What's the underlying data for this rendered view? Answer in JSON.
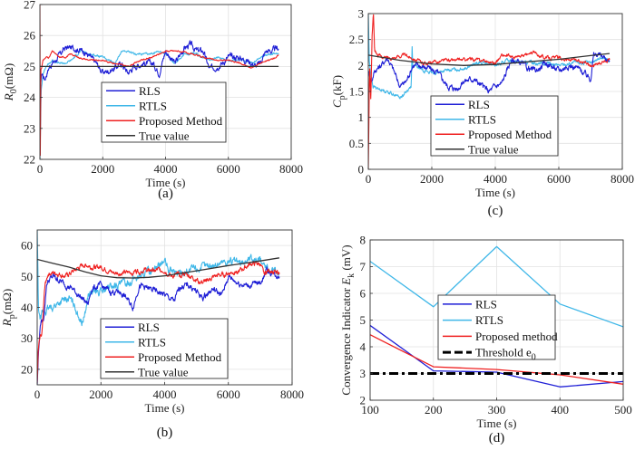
{
  "chart_data": [
    {
      "id": "a",
      "type": "line",
      "caption": "(a)",
      "xlabel": "Time (s)",
      "ylabel_main": "R",
      "ylabel_sub": "0",
      "ylabel_unit": "(mΩ)",
      "xlim": [
        0,
        8000
      ],
      "ylim": [
        22,
        27
      ],
      "xticks": [
        0,
        2000,
        4000,
        6000,
        8000
      ],
      "yticks": [
        22,
        23,
        24,
        25,
        26,
        27
      ],
      "grid": true,
      "legend_position": "center",
      "series": [
        {
          "name": "RLS",
          "color": "#1f1fd6",
          "noise": 0.12,
          "x": [
            0,
            60,
            150,
            300,
            500,
            800,
            1100,
            1400,
            1600,
            1800,
            2000,
            2300,
            2600,
            2800,
            3000,
            3300,
            3600,
            3800,
            4000,
            4300,
            4600,
            4800,
            5000,
            5200,
            5400,
            5600,
            5800,
            6000,
            6300,
            6600,
            6900,
            7000,
            7200,
            7400,
            7600
          ],
          "y": [
            24.2,
            24.8,
            24.6,
            25.0,
            25.2,
            25.6,
            25.6,
            25.5,
            25.3,
            25.1,
            24.8,
            24.9,
            25.1,
            24.8,
            25.0,
            25.1,
            25.1,
            24.8,
            25.5,
            25.1,
            25.6,
            25.7,
            25.5,
            25.5,
            24.9,
            25.0,
            25.1,
            25.3,
            25.3,
            25.2,
            25.0,
            25.1,
            25.5,
            25.5,
            25.6
          ]
        },
        {
          "name": "RTLS",
          "color": "#3fb7e8",
          "noise": 0.04,
          "x": [
            0,
            40,
            100,
            200,
            400,
            600,
            800,
            1000,
            1300,
            1600,
            2000,
            2400,
            2600,
            2700,
            3000,
            3300,
            3500,
            3800,
            4000,
            4300,
            4600,
            5000,
            5400,
            5700,
            6000,
            6400,
            6800,
            7000,
            7300,
            7600
          ],
          "y": [
            22.0,
            24.2,
            24.8,
            25.0,
            25.2,
            25.1,
            25.1,
            25.2,
            25.5,
            25.4,
            25.3,
            25.1,
            25.5,
            25.5,
            25.4,
            25.4,
            25.4,
            25.5,
            25.4,
            25.1,
            25.4,
            25.4,
            25.2,
            25.3,
            25.2,
            25.2,
            25.1,
            25.3,
            25.4,
            25.4
          ]
        },
        {
          "name": "Proposed Method",
          "color": "#ef2020",
          "noise": 0.03,
          "x": [
            0,
            10,
            30,
            60,
            100,
            200,
            300,
            400,
            500,
            600,
            800,
            1000,
            1200,
            1600,
            2000,
            2400,
            2800,
            3200,
            3600,
            4000,
            4400,
            4800,
            5200,
            5600,
            6000,
            6400,
            6700,
            7000,
            7300,
            7600
          ],
          "y": [
            27.0,
            22.0,
            24.9,
            25.0,
            25.2,
            25.3,
            25.3,
            25.5,
            25.4,
            25.3,
            25.3,
            25.4,
            25.3,
            25.2,
            25.2,
            25.1,
            25.0,
            25.2,
            25.3,
            25.5,
            25.5,
            25.4,
            25.3,
            25.2,
            25.2,
            25.1,
            24.95,
            25.1,
            25.2,
            25.35
          ]
        },
        {
          "name": "True value",
          "color": "#333333",
          "noise": 0,
          "x": [
            0,
            7600
          ],
          "y": [
            25.0,
            25.0
          ]
        }
      ]
    },
    {
      "id": "c",
      "type": "line",
      "caption": "(c)",
      "xlabel": "Time (s)",
      "ylabel_main": "C",
      "ylabel_sub": "p",
      "ylabel_unit": "(kF)",
      "xlim": [
        0,
        8000
      ],
      "ylim": [
        0,
        3
      ],
      "xticks": [
        0,
        2000,
        4000,
        6000,
        8000
      ],
      "yticks": [
        0,
        0.5,
        1,
        1.5,
        2,
        2.5,
        3
      ],
      "grid": true,
      "legend_position": "center",
      "series": [
        {
          "name": "RLS",
          "color": "#1f1fd6",
          "noise": 0.07,
          "x": [
            0,
            100,
            200,
            400,
            600,
            800,
            1000,
            1200,
            1400,
            1600,
            1900,
            2200,
            2500,
            2800,
            3000,
            3300,
            3600,
            3800,
            4000,
            4200,
            4500,
            4800,
            5000,
            5300,
            5600,
            6000,
            6300,
            6600,
            6900,
            7000,
            7100,
            7300,
            7600
          ],
          "y": [
            1.9,
            1.7,
            1.9,
            2.0,
            2.15,
            1.9,
            1.6,
            1.7,
            2.0,
            2.0,
            1.95,
            1.85,
            1.6,
            1.55,
            1.7,
            1.75,
            1.6,
            1.5,
            1.6,
            1.65,
            2.1,
            2.05,
            1.95,
            1.9,
            2.05,
            1.9,
            2.0,
            1.95,
            1.8,
            1.75,
            2.2,
            2.2,
            2.1
          ]
        },
        {
          "name": "RTLS",
          "color": "#3fb7e8",
          "noise": 0.04,
          "x": [
            0,
            30,
            60,
            150,
            300,
            600,
            900,
            1000,
            1200,
            1350,
            1380,
            1400,
            1600,
            2000,
            2500,
            3000,
            3500,
            4000,
            4400,
            5000,
            5500,
            6000,
            6500,
            7000,
            7300,
            7600
          ],
          "y": [
            3.0,
            2.1,
            1.9,
            1.6,
            1.55,
            1.5,
            1.42,
            1.38,
            1.5,
            1.6,
            2.4,
            2.0,
            1.95,
            1.85,
            1.9,
            1.95,
            2.05,
            2.0,
            2.1,
            2.05,
            2.05,
            2.0,
            2.05,
            2.05,
            2.15,
            2.1
          ]
        },
        {
          "name": "Proposed Method",
          "color": "#ef2020",
          "noise": 0.04,
          "x": [
            0,
            40,
            80,
            120,
            160,
            200,
            300,
            500,
            800,
            1100,
            1400,
            1700,
            2000,
            2400,
            2800,
            3200,
            3600,
            4000,
            4200,
            4600,
            5000,
            5200,
            5600,
            6000,
            6400,
            6800,
            7000,
            7300,
            7600
          ],
          "y": [
            0.0,
            2.0,
            1.3,
            2.6,
            3.0,
            2.3,
            2.2,
            2.15,
            2.15,
            2.2,
            2.15,
            2.05,
            2.05,
            2.1,
            2.1,
            2.12,
            2.1,
            2.05,
            2.2,
            2.15,
            2.2,
            2.25,
            2.15,
            2.15,
            2.1,
            2.08,
            2.0,
            2.05,
            2.12
          ]
        },
        {
          "name": "True value",
          "color": "#333333",
          "noise": 0,
          "x": [
            0,
            1000,
            2000,
            3000,
            4000,
            5000,
            6000,
            7000,
            7600
          ],
          "y": [
            2.2,
            2.1,
            2.03,
            2.0,
            2.02,
            2.07,
            2.12,
            2.19,
            2.23
          ]
        }
      ]
    },
    {
      "id": "b",
      "type": "line",
      "caption": "(b)",
      "xlabel": "Time (s)",
      "ylabel_main": "R",
      "ylabel_sub": "p",
      "ylabel_unit": "(mΩ)",
      "xlim": [
        0,
        8000
      ],
      "ylim": [
        15,
        65
      ],
      "xticks": [
        0,
        2000,
        4000,
        6000,
        8000
      ],
      "yticks": [
        20,
        30,
        40,
        50,
        60
      ],
      "grid": true,
      "legend_position": "bottom-center",
      "series": [
        {
          "name": "RLS",
          "color": "#1f1fd6",
          "noise": 1.2,
          "x": [
            0,
            50,
            100,
            200,
            300,
            500,
            800,
            1100,
            1400,
            1600,
            1700,
            2000,
            2300,
            2600,
            2800,
            3000,
            3200,
            3500,
            3800,
            4000,
            4300,
            4500,
            4800,
            5200,
            5500,
            5800,
            6000,
            6300,
            6600,
            7000,
            7200,
            7400,
            7600
          ],
          "y": [
            15,
            27,
            35,
            36,
            48,
            50,
            48,
            46,
            43,
            41,
            46,
            47,
            45,
            45,
            43,
            40,
            47,
            46,
            45,
            44,
            42,
            47,
            47,
            43,
            46,
            44,
            50,
            48,
            47,
            48,
            52,
            51,
            50
          ]
        },
        {
          "name": "RTLS",
          "color": "#3fb7e8",
          "noise": 1.5,
          "x": [
            0,
            40,
            80,
            150,
            300,
            600,
            1000,
            1200,
            1400,
            1500,
            1600,
            1800,
            2000,
            2400,
            2800,
            3200,
            3600,
            4000,
            4100,
            4400,
            4800,
            5200,
            5600,
            6000,
            6400,
            6700,
            7000,
            7300,
            7600
          ],
          "y": [
            65,
            40,
            36,
            38,
            39,
            41,
            43,
            40,
            35,
            38,
            44,
            45,
            45,
            47,
            48,
            50,
            52,
            55,
            52,
            51,
            52,
            53,
            54,
            55,
            54,
            56,
            55,
            52,
            51
          ]
        },
        {
          "name": "Proposed Method",
          "color": "#ef2020",
          "noise": 1.0,
          "x": [
            0,
            30,
            80,
            150,
            250,
            350,
            600,
            900,
            1200,
            1500,
            1700,
            2000,
            2400,
            2800,
            3200,
            3600,
            4000,
            4200,
            4600,
            5000,
            5200,
            5600,
            6000,
            6400,
            6700,
            7000,
            7100,
            7300,
            7600
          ],
          "y": [
            15,
            25,
            30,
            32,
            48,
            51,
            51,
            50,
            52,
            54,
            53,
            53,
            51,
            51,
            52,
            52,
            52,
            50,
            51,
            49,
            48,
            50,
            51,
            52,
            54,
            54,
            51,
            52,
            51
          ]
        },
        {
          "name": "True value",
          "color": "#333333",
          "noise": 0,
          "x": [
            0,
            500,
            1000,
            1500,
            2000,
            2500,
            3000,
            3500,
            4000,
            5000,
            6000,
            7000,
            7600
          ],
          "y": [
            55.5,
            54.2,
            53,
            51.5,
            50.2,
            49.6,
            49.5,
            49.7,
            50.2,
            51.8,
            53.5,
            55,
            56
          ]
        }
      ]
    },
    {
      "id": "d",
      "type": "line",
      "caption": "(d)",
      "xlabel": "Time (s)",
      "ylabel_main": "Convergence Indicator E",
      "ylabel_sub": "k",
      "ylabel_unit": "(mV)",
      "xlim": [
        100,
        500
      ],
      "ylim": [
        2,
        8
      ],
      "xticks": [
        100,
        200,
        300,
        400,
        500
      ],
      "yticks": [
        2,
        3,
        4,
        5,
        6,
        7,
        8
      ],
      "grid": true,
      "legend_position": "center",
      "series": [
        {
          "name": "RLS",
          "color": "#1f1fd6",
          "dashed": false,
          "x": [
            100,
            200,
            300,
            400,
            500
          ],
          "y": [
            4.8,
            3.1,
            3.05,
            2.5,
            2.7
          ]
        },
        {
          "name": "RTLS",
          "color": "#3fb7e8",
          "dashed": false,
          "x": [
            100,
            200,
            300,
            400,
            500
          ],
          "y": [
            7.2,
            5.5,
            7.75,
            5.6,
            4.75
          ]
        },
        {
          "name": "Proposed method",
          "color": "#ef2020",
          "dashed": false,
          "x": [
            100,
            200,
            300,
            400,
            500
          ],
          "y": [
            4.45,
            3.25,
            3.15,
            2.95,
            2.6
          ]
        },
        {
          "name": "Threshold e",
          "legend_sub": "0",
          "color": "#000000",
          "dashed": true,
          "x": [
            100,
            500
          ],
          "y": [
            3.0,
            3.0
          ]
        }
      ]
    }
  ]
}
